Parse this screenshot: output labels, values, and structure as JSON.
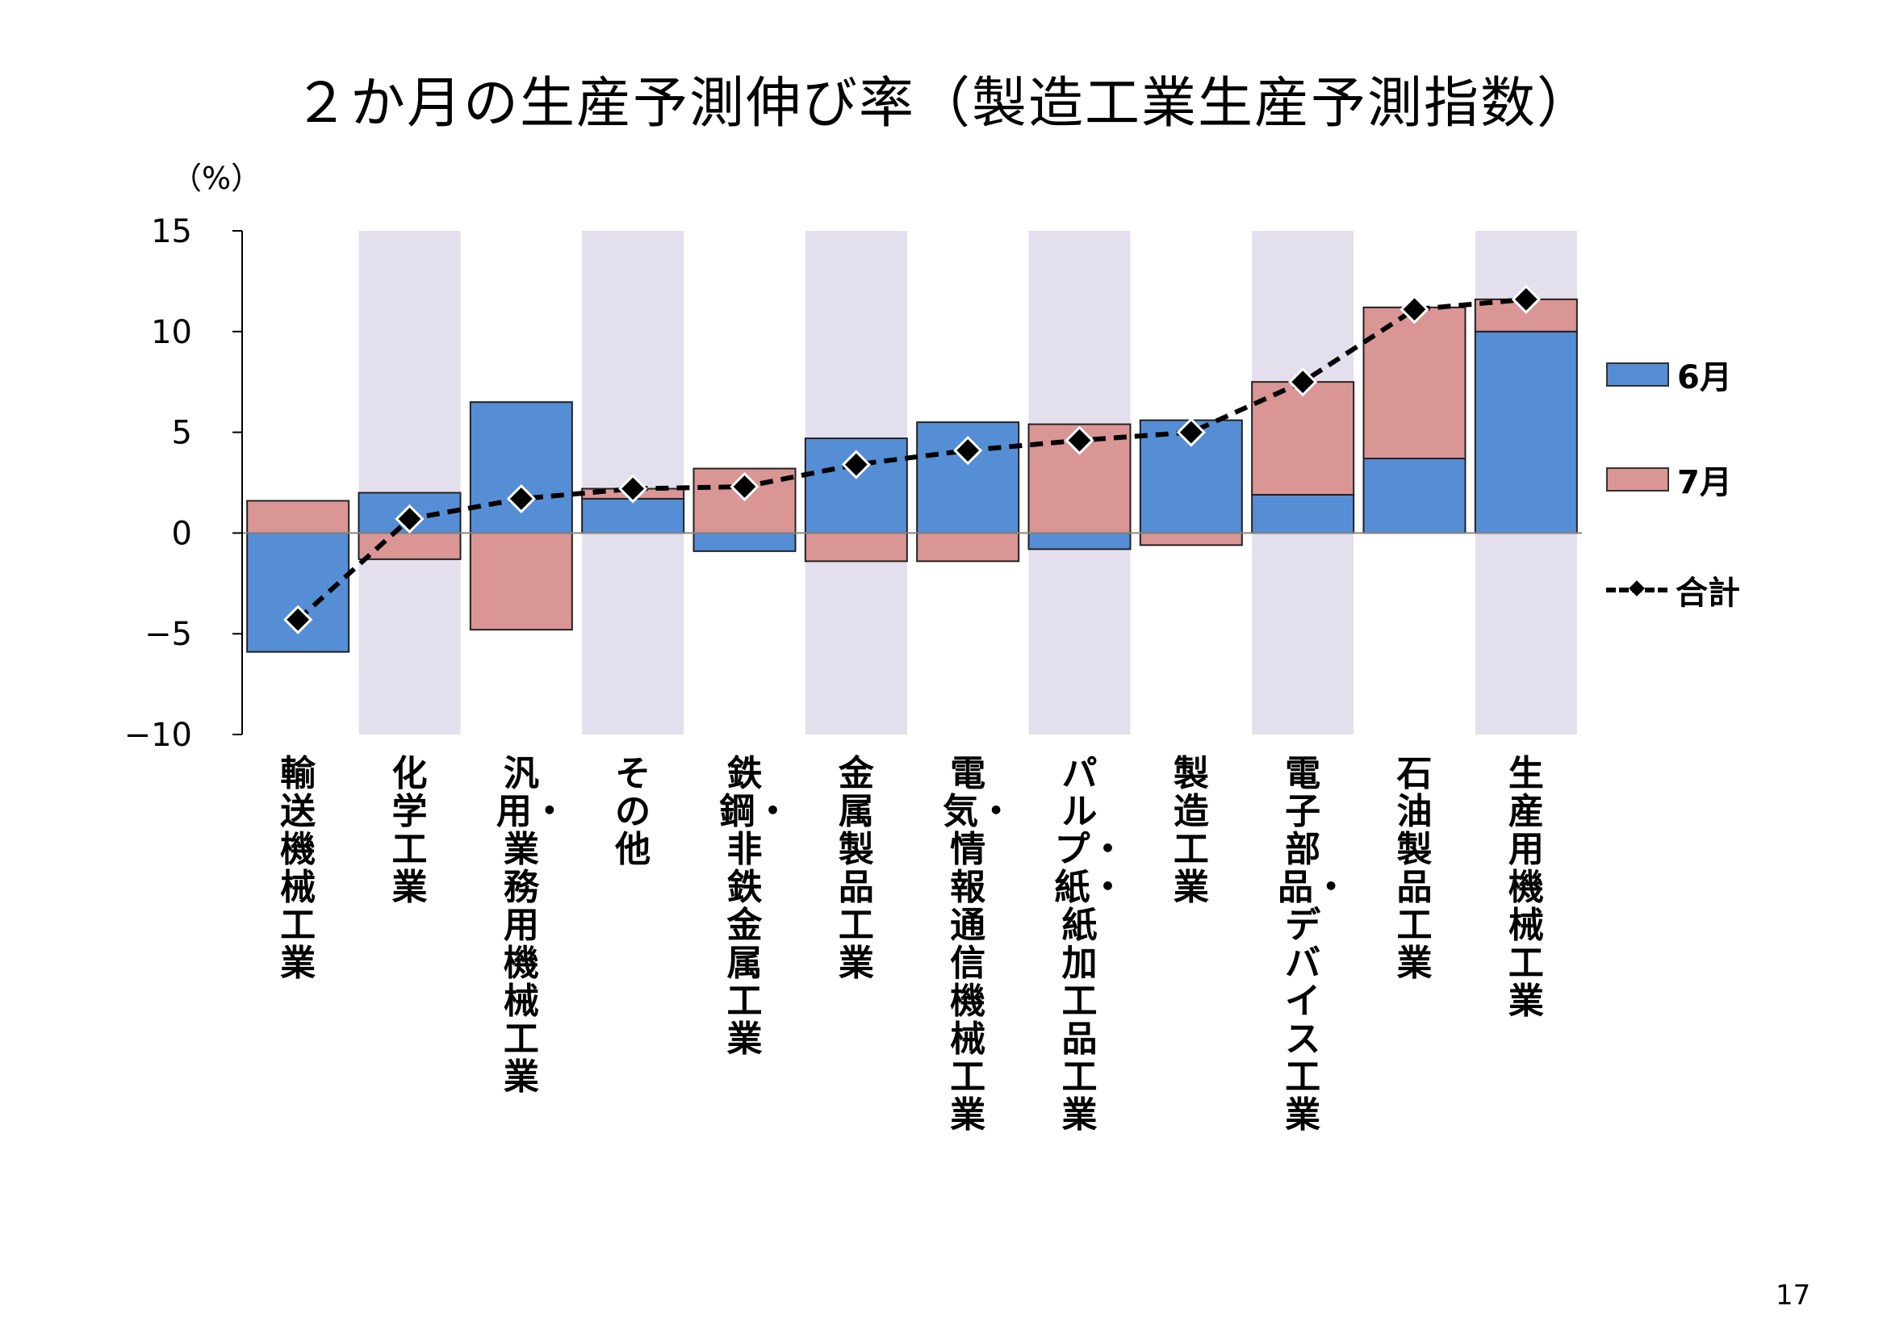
{
  "page": {
    "title": "２か月の生産予測伸び率（製造工業生産予測指数）",
    "unit_label": "（%）",
    "page_number": "17"
  },
  "legend": {
    "june_label": "6月",
    "july_label": "7月",
    "total_label": "合計"
  },
  "colors": {
    "june": "#558ed5",
    "july": "#d99694",
    "band": "#e4dfec",
    "line": "#000000"
  },
  "chart_data": {
    "type": "bar",
    "stacked": true,
    "title": "２か月の生産予測伸び率（製造工業生産予測指数）",
    "ylabel": "（%）",
    "ylim": [
      -10,
      15
    ],
    "yticks": [
      15,
      10,
      5,
      0,
      -5,
      -10
    ],
    "ytick_labels": [
      "15",
      "10",
      "5",
      "0",
      "−5",
      "−10"
    ],
    "categories": [
      "輸送機械工業",
      "化学工業",
      "汎用・業務用機械工業",
      "その他",
      "鉄鋼・非鉄金属工業",
      "金属製品工業",
      "電気・情報通信機械工業",
      "パルプ・紙・紙加工品工業",
      "製造工業",
      "電子部品・デバイス工業",
      "石油製品工業",
      "生産用機械工業"
    ],
    "series": [
      {
        "name": "6月",
        "type": "bar",
        "values": [
          -5.9,
          2.0,
          6.5,
          1.7,
          -0.9,
          4.7,
          5.5,
          -0.8,
          5.6,
          1.9,
          3.7,
          10.0
        ]
      },
      {
        "name": "7月",
        "type": "bar",
        "values": [
          1.6,
          -1.3,
          -4.8,
          0.5,
          3.2,
          -1.4,
          -1.4,
          5.4,
          -0.6,
          5.6,
          7.5,
          1.6
        ]
      },
      {
        "name": "合計",
        "type": "line",
        "values": [
          -4.3,
          0.7,
          1.7,
          2.2,
          2.3,
          3.4,
          4.1,
          4.6,
          5.0,
          7.5,
          11.1,
          11.6
        ]
      }
    ],
    "legend_position": "right"
  }
}
